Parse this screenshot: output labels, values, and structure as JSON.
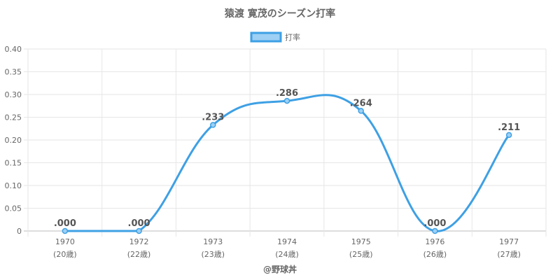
{
  "chart_data": {
    "type": "line",
    "title": "猿渡 寛茂のシーズン打率",
    "categories": [
      "1970",
      "1972",
      "1973",
      "1974",
      "1975",
      "1976",
      "1977"
    ],
    "age_labels": [
      "(20歳)",
      "(22歳)",
      "(23歳)",
      "(24歳)",
      "(25歳)",
      "(26歳)",
      "(27歳)"
    ],
    "series": [
      {
        "name": "打率",
        "values": [
          0.0,
          0.0,
          0.233,
          0.286,
          0.264,
          0.0,
          0.211
        ],
        "data_labels": [
          ".000",
          ".000",
          ".233",
          ".286",
          ".264",
          ".000",
          ".211"
        ]
      }
    ],
    "yticks": [
      "0",
      "0.05",
      "0.10",
      "0.15",
      "0.20",
      "0.25",
      "0.30",
      "0.35",
      "0.40"
    ],
    "ylim": [
      0,
      0.4
    ],
    "grid": true,
    "legend_position": "top",
    "line_color": "#3ea0e4",
    "fill_color": "#9dd0f4",
    "credit": "@野球丼"
  }
}
